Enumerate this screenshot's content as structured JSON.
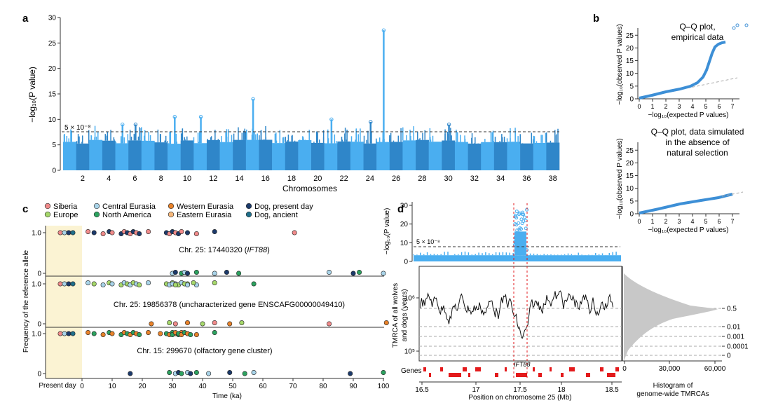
{
  "panel_labels": {
    "a": "a",
    "b": "b",
    "c": "c",
    "d": "d"
  },
  "colors": {
    "light_blue": "#4aaef0",
    "dark_blue": "#2f86c9",
    "qq_blue": "#3d8fd6",
    "highlight": "#fbf3d3",
    "gene_red": "#e31a1c",
    "dashed_grey": "#888888"
  },
  "panel_a": {
    "ylabel": "−log₁₀(P value)",
    "xlabel": "Chromosomes",
    "threshold_label": "5 × 10⁻⁸",
    "yticks": [
      "0",
      "5",
      "10",
      "15",
      "20",
      "25",
      "30"
    ],
    "xticks": [
      "2",
      "4",
      "6",
      "8",
      "10",
      "12",
      "14",
      "16",
      "18",
      "20",
      "22",
      "24",
      "26",
      "28",
      "30",
      "32",
      "34",
      "36",
      "38"
    ]
  },
  "panel_b": {
    "top_title": [
      "Q–Q plot,",
      "empirical data"
    ],
    "bottom_title": [
      "Q–Q plot, data simulated",
      "in the absence of",
      "natural selection"
    ],
    "ylabel": "−log₁₀(observed P values)",
    "xlabel": "−log₁₀(expected P values)",
    "yticks": [
      "0",
      "5",
      "10",
      "15",
      "20",
      "25"
    ],
    "xticks": [
      "0",
      "1",
      "2",
      "3",
      "4",
      "5",
      "6",
      "7"
    ]
  },
  "panel_c": {
    "legend": [
      {
        "label": "Siberia",
        "color": "#f08a8a"
      },
      {
        "label": "Central Eurasia",
        "color": "#a8d3e8"
      },
      {
        "label": "Western Eurasia",
        "color": "#e8822a"
      },
      {
        "label": "Dog, present day",
        "color": "#1c3a6b"
      },
      {
        "label": "Europe",
        "color": "#a6d86b"
      },
      {
        "label": "North America",
        "color": "#2ca25f"
      },
      {
        "label": "Eastern Eurasia",
        "color": "#f5b77a"
      },
      {
        "label": "Dog, ancient",
        "color": "#1f6f8b"
      }
    ],
    "ylabel": "Frequency of the reference allele",
    "xlabel": "Time (ka)",
    "present_day": "Present day",
    "row_titles": [
      {
        "prefix": "Chr. 25: 17440320 (",
        "italic": "IFT88",
        "suffix": ")"
      },
      {
        "prefix": "Chr. 25: 19856378 (uncharacterized gene ENSCAFG00000049410)",
        "italic": "",
        "suffix": ""
      },
      {
        "prefix": "Chr. 15: 299670 (olfactory gene cluster)",
        "italic": "",
        "suffix": ""
      }
    ],
    "yticks": [
      "1.0",
      "0"
    ],
    "xticks": [
      "0",
      "10",
      "20",
      "30",
      "40",
      "50",
      "60",
      "70",
      "80",
      "90",
      "100"
    ]
  },
  "panel_d": {
    "top_ylabel": "−log₁₀(P value)",
    "threshold_label": "5 × 10⁻⁸",
    "top_yticks": [
      "0",
      "10",
      "20",
      "30"
    ],
    "mid_ylabel": [
      "TMRCA of all wolves",
      "and dogs (years)"
    ],
    "mid_yticks": [
      "10⁶",
      "10⁵"
    ],
    "right_ticks": [
      "0.5",
      "0.01",
      "0.001",
      "0.0001",
      "0"
    ],
    "gene_label": "IFT88",
    "genes_label": "Genes",
    "xlabel": "Position on chromosome 25 (Mb)",
    "xticks": [
      "16.5",
      "17",
      "17.5",
      "18",
      "18.5"
    ],
    "hist_xticks": [
      "0",
      "30,000",
      "60,000"
    ],
    "hist_label": [
      "Histogram of",
      "genome-wide TMRCAs"
    ]
  }
}
